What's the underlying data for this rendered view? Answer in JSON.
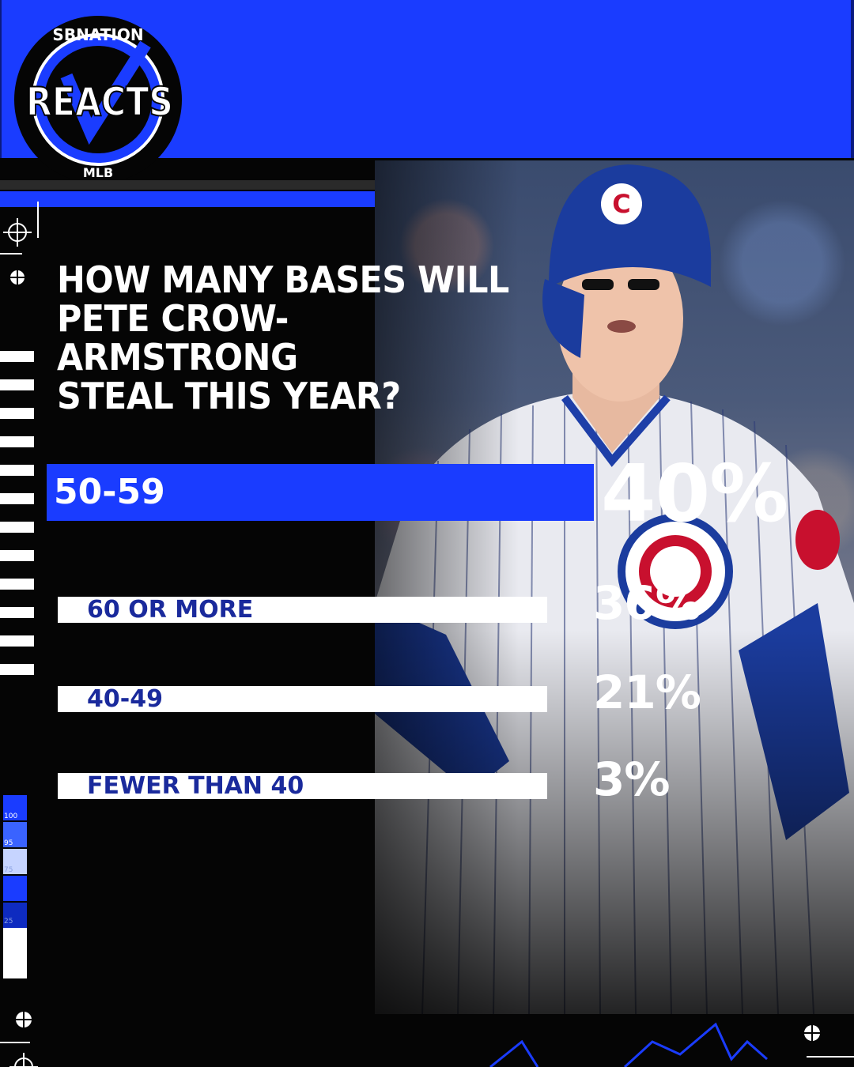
{
  "brand": {
    "top_text": "SBNATION",
    "main_text": "REACTS",
    "bottom_text": "MLB"
  },
  "question": "HOW MANY BASES WILL\nPETE CROW-ARMSTRONG\nSTEAL THIS YEAR?",
  "colors": {
    "accent": "#1a3cff",
    "label_dark": "#1a2a9c",
    "bar_white": "#ffffff",
    "background": "#050505"
  },
  "scale_labels": [
    "100",
    "95",
    "75",
    "25"
  ],
  "chart_data": {
    "type": "bar",
    "orientation": "horizontal",
    "categories": [
      "50-59",
      "60 OR MORE",
      "40-49",
      "FEWER THAN 40"
    ],
    "values": [
      40,
      36,
      21,
      3
    ],
    "value_labels": [
      "40%",
      "36%",
      "21%",
      "3%"
    ],
    "unit": "%",
    "highlight": "50-59"
  }
}
